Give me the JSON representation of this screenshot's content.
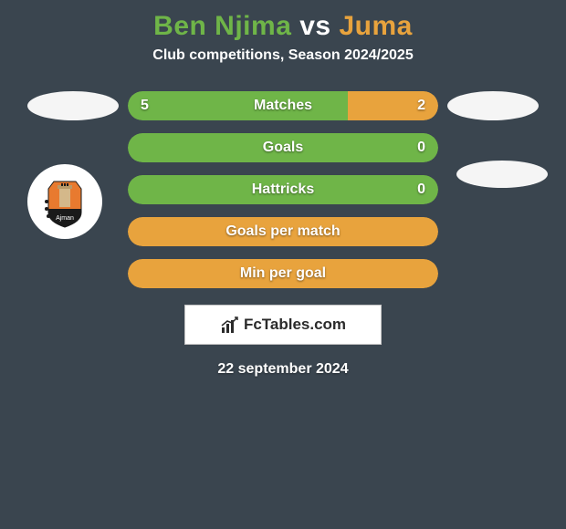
{
  "title": {
    "player1": "Ben Njima",
    "vs": "vs",
    "player2": "Juma",
    "player1_color": "#6fb548",
    "vs_color": "#ffffff",
    "player2_color": "#e8a33d"
  },
  "subtitle": "Club competitions, Season 2024/2025",
  "bars": [
    {
      "label": "Matches",
      "left_val": "5",
      "right_val": "2",
      "left_pct": 71,
      "left_color": "#6fb548",
      "right_color": "#e8a33d",
      "show_vals": true,
      "side_badges": true
    },
    {
      "label": "Goals",
      "left_val": "",
      "right_val": "0",
      "left_pct": 0,
      "left_color": "#6fb548",
      "right_color": "#6fb548",
      "full_color": "#6fb548",
      "show_vals": "right-only",
      "side_badges": false
    },
    {
      "label": "Hattricks",
      "left_val": "",
      "right_val": "0",
      "left_pct": 0,
      "left_color": "#6fb548",
      "right_color": "#6fb548",
      "full_color": "#6fb548",
      "show_vals": "right-only",
      "side_badges": false
    },
    {
      "label": "Goals per match",
      "left_val": "",
      "right_val": "",
      "left_pct": 0,
      "full_color": "#e8a33d",
      "show_vals": false,
      "side_badges": false
    },
    {
      "label": "Min per goal",
      "left_val": "",
      "right_val": "",
      "left_pct": 0,
      "full_color": "#e8a33d",
      "show_vals": false,
      "side_badges": false
    }
  ],
  "logo": {
    "text": "FcTables.com"
  },
  "date": "22 september 2024",
  "colors": {
    "background": "#3a454f",
    "badge_bg": "#f5f5f5"
  }
}
